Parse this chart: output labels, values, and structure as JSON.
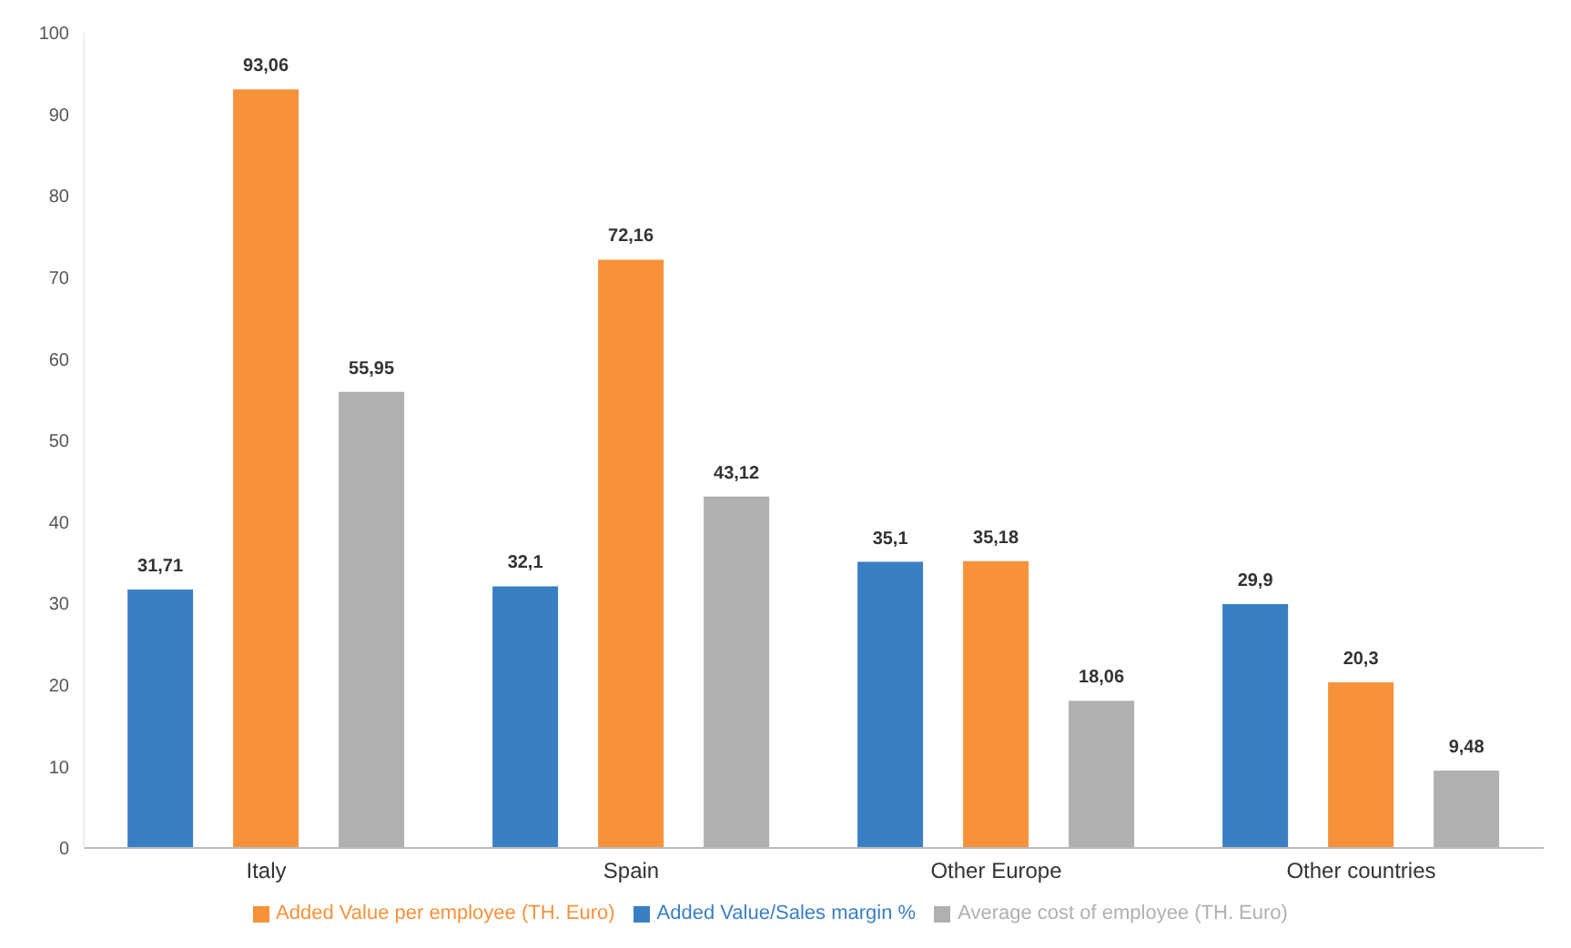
{
  "chart_data": {
    "type": "bar",
    "categories": [
      "Italy",
      "Spain",
      "Other Europe",
      "Other countries"
    ],
    "series": [
      {
        "name": "Added Value/Sales margin %",
        "color": "#3a7fc4",
        "values": [
          31.71,
          32.1,
          35.1,
          29.9
        ],
        "value_labels": [
          "31,71",
          "32,1",
          "35,1",
          "29,9"
        ]
      },
      {
        "name": "Added Value per employee (TH. Euro)",
        "color": "#f7923a",
        "values": [
          93.06,
          72.16,
          35.18,
          20.3
        ],
        "value_labels": [
          "93,06",
          "72,16",
          "35,18",
          "20,3"
        ]
      },
      {
        "name": "Average cost of employee (TH. Euro)",
        "color": "#b0b0b0",
        "values": [
          55.95,
          43.12,
          18.06,
          9.48
        ],
        "value_labels": [
          "55,95",
          "43,12",
          "18,06",
          "9,48"
        ]
      }
    ],
    "ylim": [
      0,
      100
    ],
    "yticks": [
      0,
      10,
      20,
      30,
      40,
      50,
      60,
      70,
      80,
      90,
      100
    ],
    "grid": false,
    "legend": "bottom"
  }
}
